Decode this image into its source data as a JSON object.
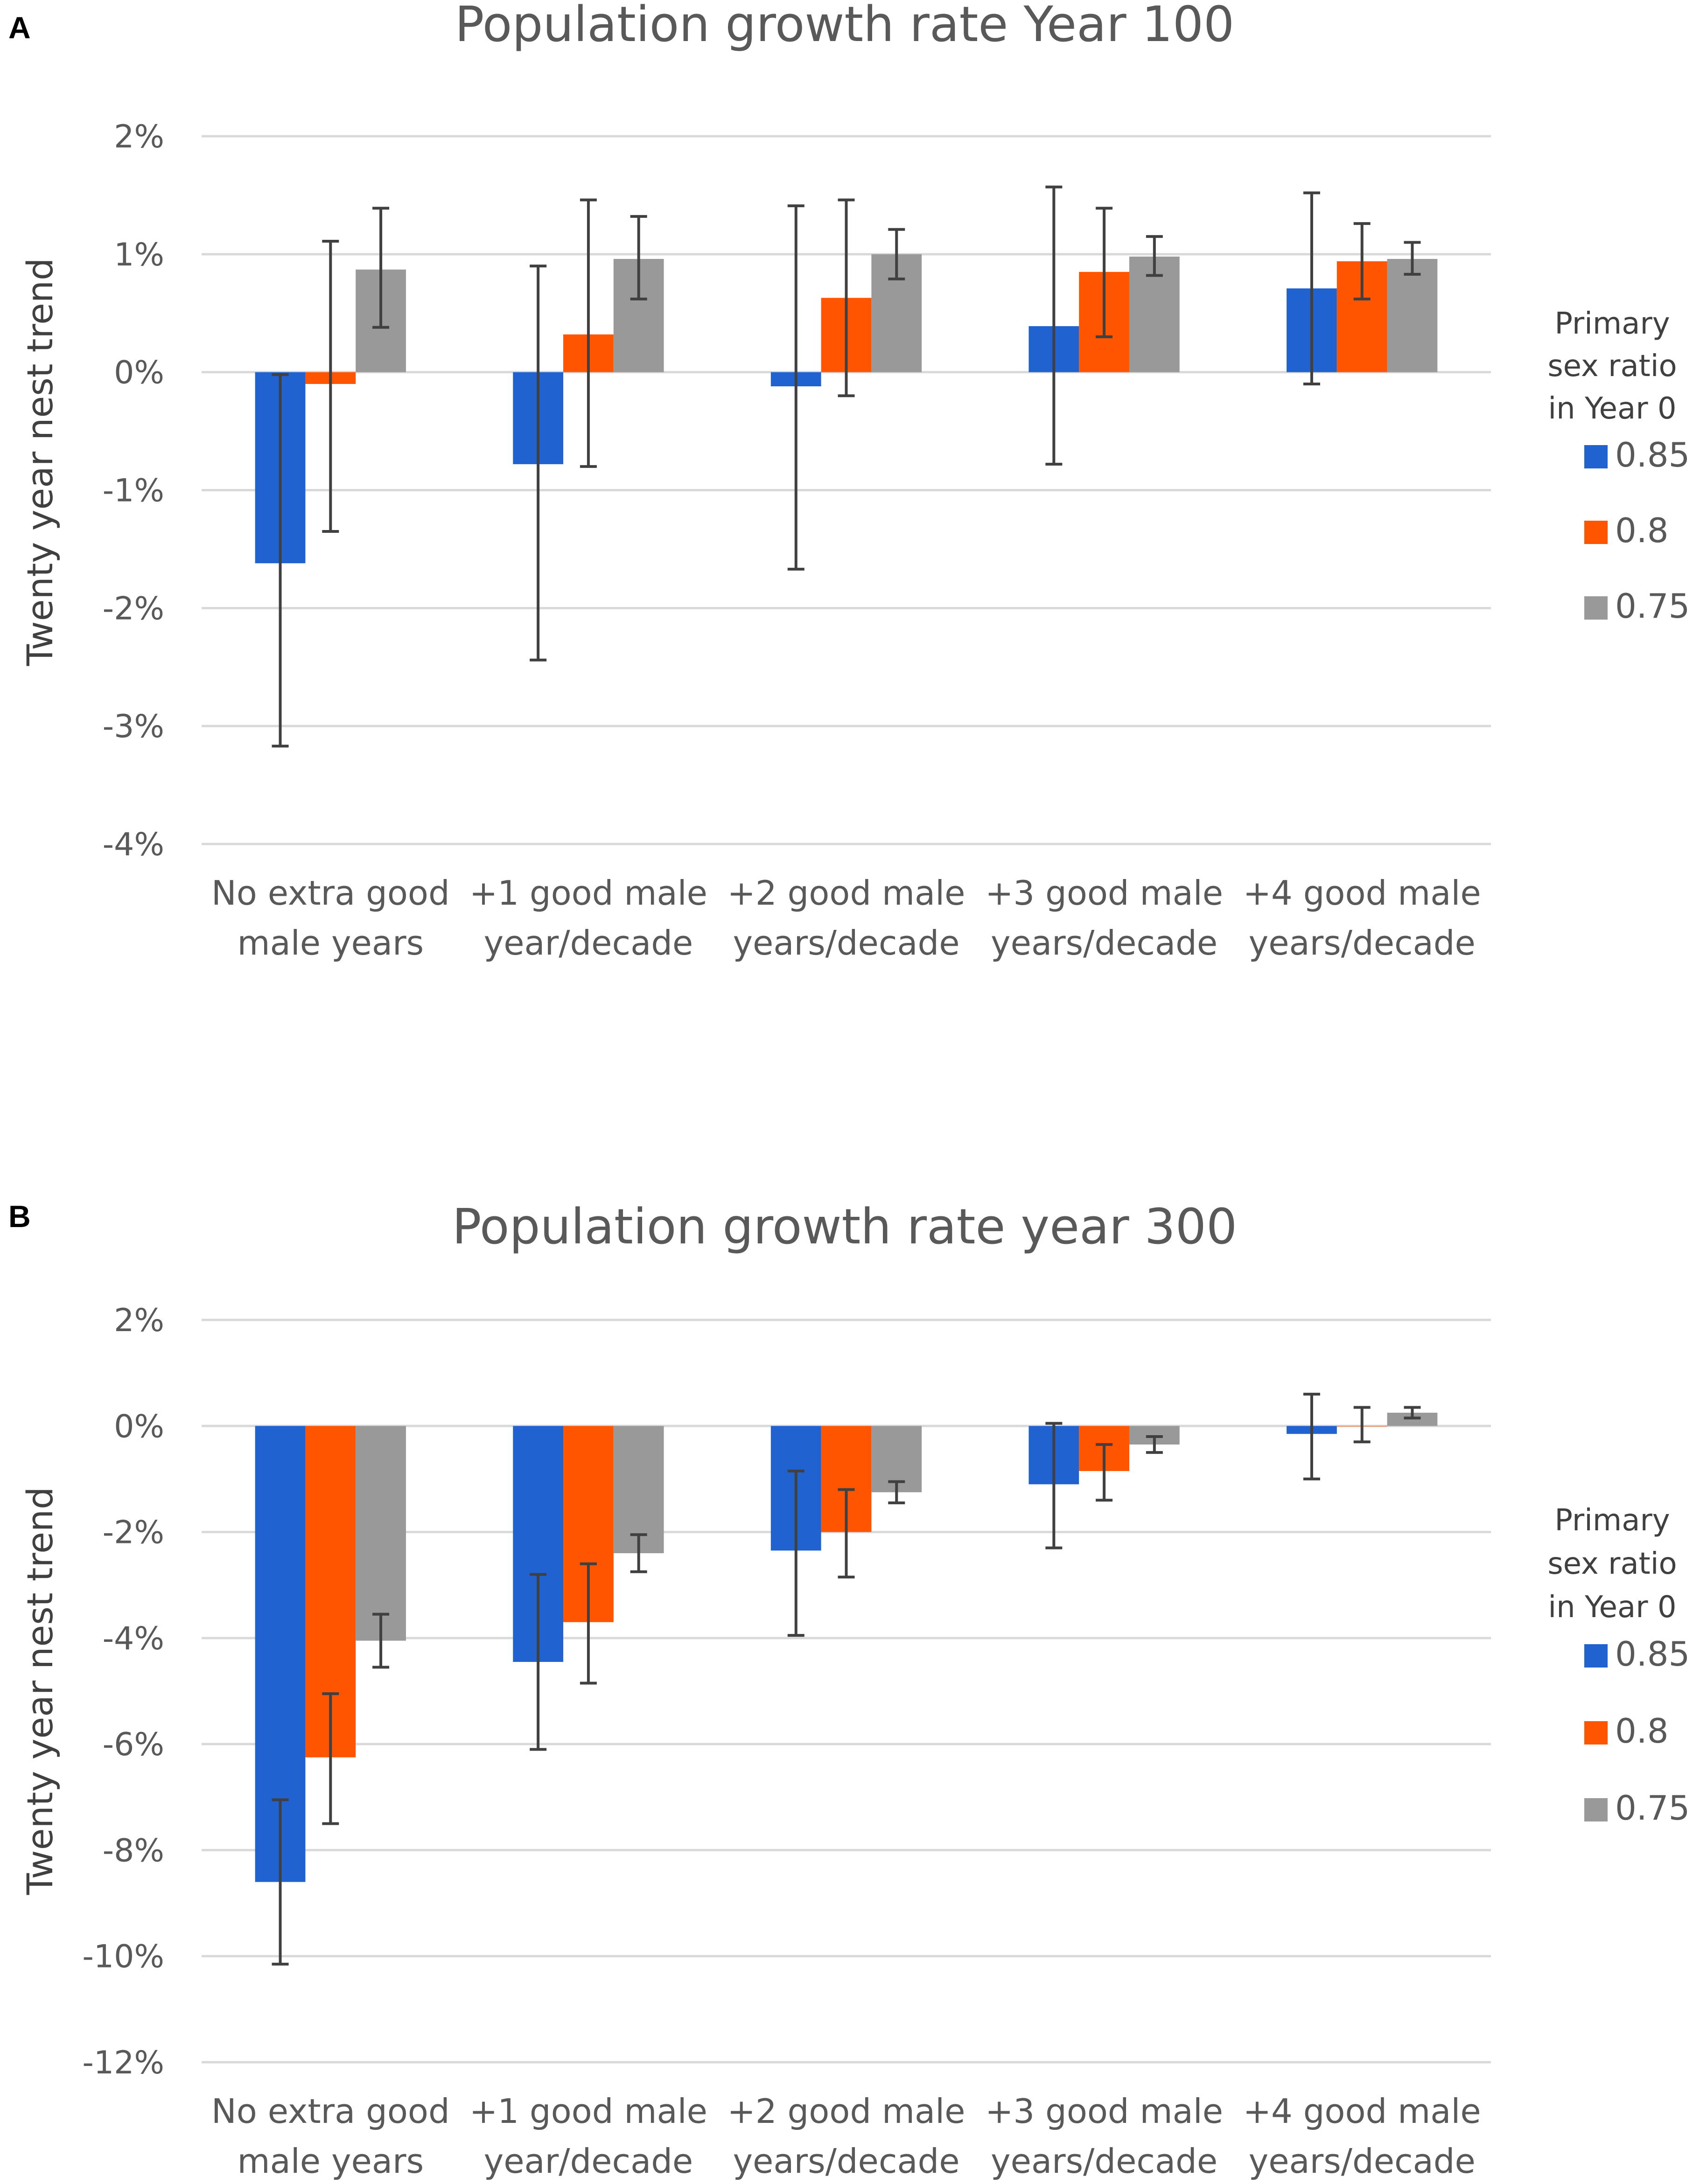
{
  "chart_data": [
    {
      "panel_label": "A",
      "type": "bar",
      "title": "Population growth rate Year 100",
      "ylabel": "Twenty year nest trend",
      "xlabel": "",
      "ylim": [
        -4,
        2
      ],
      "yticks": [
        2,
        1,
        0,
        -1,
        -2,
        -3,
        -4
      ],
      "ytick_labels": [
        "2%",
        "1%",
        "0%",
        "-1%",
        "-2%",
        "-3%",
        "-4%"
      ],
      "categories": [
        [
          "No extra good",
          "male years"
        ],
        [
          "+1 good male",
          "year/decade"
        ],
        [
          "+2 good male",
          "years/decade"
        ],
        [
          "+3 good male",
          "years/decade"
        ],
        [
          "+4 good male",
          "years/decade"
        ]
      ],
      "legend_title": [
        "Primary",
        "sex ratio",
        "in Year 0"
      ],
      "series": [
        {
          "name": "0.85",
          "color": "#1f62d0",
          "values": [
            -1.62,
            -0.78,
            -0.12,
            0.39,
            0.71
          ],
          "err_low": [
            -3.17,
            -2.44,
            -1.67,
            -0.78,
            -0.1
          ],
          "err_high": [
            -0.02,
            0.9,
            1.41,
            1.57,
            1.52
          ]
        },
        {
          "name": "0.8",
          "color": "#ff5500",
          "values": [
            -0.1,
            0.32,
            0.63,
            0.85,
            0.94
          ],
          "err_low": [
            -1.35,
            -0.8,
            -0.2,
            0.3,
            0.62
          ],
          "err_high": [
            1.11,
            1.46,
            1.46,
            1.39,
            1.26
          ]
        },
        {
          "name": "0.75",
          "color": "#999999",
          "values": [
            0.87,
            0.96,
            1.0,
            0.98,
            0.96
          ],
          "err_low": [
            0.38,
            0.62,
            0.79,
            0.82,
            0.83
          ],
          "err_high": [
            1.39,
            1.32,
            1.21,
            1.15,
            1.1
          ]
        }
      ]
    },
    {
      "panel_label": "B",
      "type": "bar",
      "title": "Population growth rate year 300",
      "ylabel": "Twenty year nest trend",
      "xlabel": "",
      "ylim": [
        -12,
        2
      ],
      "yticks": [
        2,
        0,
        -2,
        -4,
        -6,
        -8,
        -10,
        -12
      ],
      "ytick_labels": [
        "2%",
        "0%",
        "-2%",
        "-4%",
        "-6%",
        "-8%",
        "-10%",
        "-12%"
      ],
      "categories": [
        [
          "No extra good",
          "male years"
        ],
        [
          "+1 good male",
          "year/decade"
        ],
        [
          "+2 good male",
          "years/decade"
        ],
        [
          "+3 good male",
          "years/decade"
        ],
        [
          "+4 good male",
          "years/decade"
        ]
      ],
      "legend_title": [
        "Primary",
        "sex ratio",
        "in Year 0"
      ],
      "series": [
        {
          "name": "0.85",
          "color": "#1f62d0",
          "values": [
            -8.6,
            -4.45,
            -2.35,
            -1.1,
            -0.15
          ],
          "err_low": [
            -10.15,
            -6.1,
            -3.95,
            -2.3,
            -1.0
          ],
          "err_high": [
            -7.05,
            -2.8,
            -0.85,
            0.05,
            0.6
          ]
        },
        {
          "name": "0.8",
          "color": "#ff5500",
          "values": [
            -6.25,
            -3.7,
            -2.0,
            -0.85,
            0.0
          ],
          "err_low": [
            -7.5,
            -4.85,
            -2.85,
            -1.4,
            -0.3
          ],
          "err_high": [
            -5.05,
            -2.6,
            -1.2,
            -0.35,
            0.35
          ]
        },
        {
          "name": "0.75",
          "color": "#999999",
          "values": [
            -4.05,
            -2.4,
            -1.25,
            -0.35,
            0.25
          ],
          "err_low": [
            -4.55,
            -2.75,
            -1.45,
            -0.5,
            0.15
          ],
          "err_high": [
            -3.55,
            -2.05,
            -1.05,
            -0.2,
            0.35
          ]
        }
      ]
    }
  ]
}
